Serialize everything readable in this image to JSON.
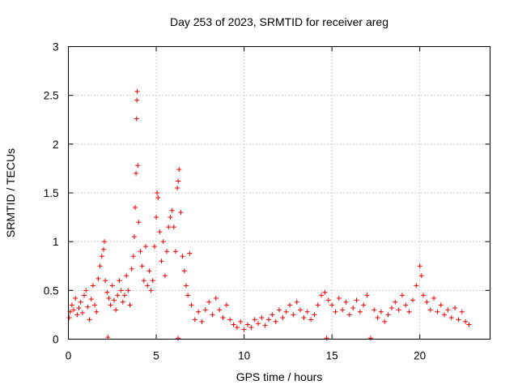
{
  "chart_data": {
    "type": "scatter",
    "title": "Day 253 of 2023, SRMTID for receiver areg",
    "xlabel": "GPS time / hours",
    "ylabel": "SRMTID / TECUs",
    "xlim": [
      0,
      24
    ],
    "ylim": [
      0,
      3
    ],
    "xticks": [
      0,
      5,
      10,
      15,
      20
    ],
    "xtick_labels": [
      "0",
      "5",
      "10",
      "15",
      "20"
    ],
    "yticks": [
      0,
      0.5,
      1,
      1.5,
      2,
      2.5,
      3
    ],
    "ytick_labels": [
      "0",
      "0.5",
      "1",
      "1.5",
      "2",
      "2.5",
      "3"
    ],
    "grid": true,
    "marker": "plus",
    "color": "#ee0000",
    "series": [
      {
        "name": "SRMTID",
        "points": [
          [
            0.05,
            0.22
          ],
          [
            0.1,
            0.28
          ],
          [
            0.2,
            0.35
          ],
          [
            0.3,
            0.3
          ],
          [
            0.4,
            0.42
          ],
          [
            0.5,
            0.25
          ],
          [
            0.6,
            0.32
          ],
          [
            0.7,
            0.38
          ],
          [
            0.8,
            0.27
          ],
          [
            0.9,
            0.45
          ],
          [
            1.0,
            0.5
          ],
          [
            1.1,
            0.33
          ],
          [
            1.2,
            0.2
          ],
          [
            1.3,
            0.41
          ],
          [
            1.4,
            0.55
          ],
          [
            1.5,
            0.35
          ],
          [
            1.6,
            0.28
          ],
          [
            1.7,
            0.62
          ],
          [
            1.8,
            0.75
          ],
          [
            1.9,
            0.85
          ],
          [
            2.0,
            0.92
          ],
          [
            2.05,
            1.0
          ],
          [
            2.1,
            0.6
          ],
          [
            2.2,
            0.48
          ],
          [
            2.25,
            0.02
          ],
          [
            2.3,
            0.42
          ],
          [
            2.4,
            0.35
          ],
          [
            2.5,
            0.55
          ],
          [
            2.6,
            0.4
          ],
          [
            2.7,
            0.3
          ],
          [
            2.8,
            0.45
          ],
          [
            2.9,
            0.6
          ],
          [
            3.0,
            0.5
          ],
          [
            3.1,
            0.38
          ],
          [
            3.2,
            0.45
          ],
          [
            3.3,
            0.65
          ],
          [
            3.4,
            0.5
          ],
          [
            3.5,
            0.35
          ],
          [
            3.6,
            0.72
          ],
          [
            3.7,
            0.85
          ],
          [
            3.75,
            1.05
          ],
          [
            3.8,
            1.35
          ],
          [
            3.85,
            1.7
          ],
          [
            3.88,
            2.26
          ],
          [
            3.9,
            2.45
          ],
          [
            3.92,
            2.54
          ],
          [
            3.95,
            1.78
          ],
          [
            4.0,
            1.2
          ],
          [
            4.1,
            0.9
          ],
          [
            4.2,
            0.75
          ],
          [
            4.3,
            0.6
          ],
          [
            4.4,
            0.95
          ],
          [
            4.5,
            0.55
          ],
          [
            4.6,
            0.7
          ],
          [
            4.7,
            0.5
          ],
          [
            4.8,
            0.6
          ],
          [
            4.9,
            0.95
          ],
          [
            5.0,
            1.25
          ],
          [
            5.05,
            1.5
          ],
          [
            5.1,
            1.45
          ],
          [
            5.2,
            1.1
          ],
          [
            5.3,
            0.8
          ],
          [
            5.4,
            1.0
          ],
          [
            5.5,
            0.65
          ],
          [
            5.6,
            0.9
          ],
          [
            5.7,
            1.15
          ],
          [
            5.8,
            1.25
          ],
          [
            5.9,
            1.32
          ],
          [
            6.0,
            1.15
          ],
          [
            6.1,
            0.9
          ],
          [
            6.2,
            1.55
          ],
          [
            6.25,
            1.62
          ],
          [
            6.3,
            1.74
          ],
          [
            6.4,
            1.3
          ],
          [
            6.5,
            0.85
          ],
          [
            6.6,
            0.7
          ],
          [
            6.7,
            0.55
          ],
          [
            6.8,
            0.45
          ],
          [
            6.9,
            0.88
          ],
          [
            7.0,
            0.35
          ],
          [
            6.25,
            0.01
          ],
          [
            7.2,
            0.2
          ],
          [
            7.4,
            0.28
          ],
          [
            7.6,
            0.18
          ],
          [
            7.8,
            0.3
          ],
          [
            8.0,
            0.38
          ],
          [
            8.2,
            0.25
          ],
          [
            8.4,
            0.42
          ],
          [
            8.6,
            0.3
          ],
          [
            8.8,
            0.22
          ],
          [
            9.0,
            0.35
          ],
          [
            9.2,
            0.2
          ],
          [
            9.4,
            0.15
          ],
          [
            9.6,
            0.12
          ],
          [
            9.8,
            0.18
          ],
          [
            10.0,
            0.1
          ],
          [
            10.2,
            0.15
          ],
          [
            10.4,
            0.12
          ],
          [
            10.6,
            0.2
          ],
          [
            10.8,
            0.16
          ],
          [
            11.0,
            0.22
          ],
          [
            11.2,
            0.14
          ],
          [
            11.4,
            0.2
          ],
          [
            11.6,
            0.25
          ],
          [
            11.8,
            0.18
          ],
          [
            12.0,
            0.3
          ],
          [
            12.2,
            0.22
          ],
          [
            12.4,
            0.28
          ],
          [
            12.6,
            0.35
          ],
          [
            12.8,
            0.25
          ],
          [
            13.0,
            0.38
          ],
          [
            13.2,
            0.3
          ],
          [
            13.4,
            0.22
          ],
          [
            13.6,
            0.28
          ],
          [
            13.8,
            0.2
          ],
          [
            14.0,
            0.25
          ],
          [
            14.2,
            0.35
          ],
          [
            14.4,
            0.45
          ],
          [
            14.6,
            0.48
          ],
          [
            14.7,
            0.01
          ],
          [
            14.8,
            0.4
          ],
          [
            15.0,
            0.35
          ],
          [
            15.2,
            0.28
          ],
          [
            15.4,
            0.42
          ],
          [
            15.6,
            0.3
          ],
          [
            15.8,
            0.38
          ],
          [
            16.0,
            0.25
          ],
          [
            16.2,
            0.32
          ],
          [
            16.4,
            0.4
          ],
          [
            16.6,
            0.28
          ],
          [
            16.8,
            0.35
          ],
          [
            17.0,
            0.45
          ],
          [
            17.2,
            0.01
          ],
          [
            17.4,
            0.3
          ],
          [
            17.6,
            0.22
          ],
          [
            17.8,
            0.28
          ],
          [
            18.0,
            0.18
          ],
          [
            18.2,
            0.25
          ],
          [
            18.4,
            0.32
          ],
          [
            18.6,
            0.38
          ],
          [
            18.8,
            0.3
          ],
          [
            19.0,
            0.45
          ],
          [
            19.2,
            0.35
          ],
          [
            19.4,
            0.28
          ],
          [
            19.6,
            0.4
          ],
          [
            19.8,
            0.55
          ],
          [
            20.0,
            0.75
          ],
          [
            20.1,
            0.65
          ],
          [
            20.2,
            0.45
          ],
          [
            20.4,
            0.38
          ],
          [
            20.6,
            0.3
          ],
          [
            20.8,
            0.42
          ],
          [
            21.0,
            0.28
          ],
          [
            21.2,
            0.35
          ],
          [
            21.4,
            0.25
          ],
          [
            21.6,
            0.3
          ],
          [
            21.8,
            0.22
          ],
          [
            22.0,
            0.32
          ],
          [
            22.2,
            0.2
          ],
          [
            22.4,
            0.28
          ],
          [
            22.6,
            0.18
          ],
          [
            22.8,
            0.15
          ]
        ]
      }
    ]
  }
}
